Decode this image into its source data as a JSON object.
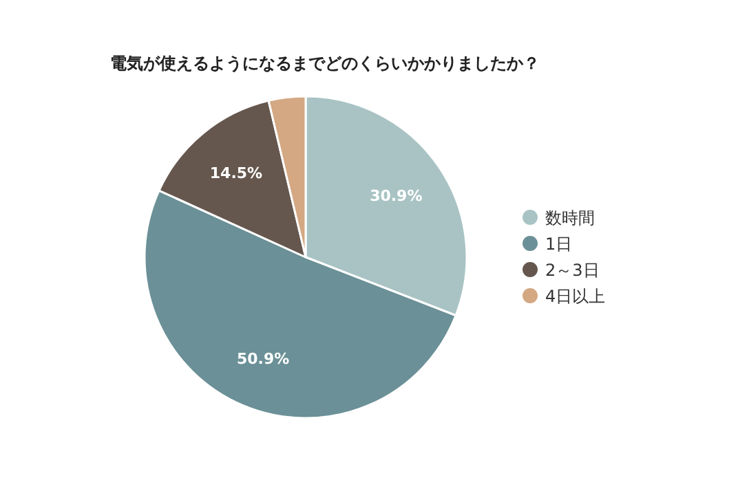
{
  "chart_data": {
    "type": "pie",
    "title": "電気が使えるようになるまでどのくらいかかりましたか？",
    "categories": [
      "数時間",
      "1日",
      "2～3日",
      "4日以上"
    ],
    "values": [
      30.9,
      50.9,
      14.5,
      3.7
    ],
    "colors": [
      "#a9c3c4",
      "#6b9097",
      "#65574e",
      "#d3a883"
    ],
    "value_labels": [
      "30.9%",
      "50.9%",
      "14.5%",
      null
    ],
    "legend": "right"
  }
}
